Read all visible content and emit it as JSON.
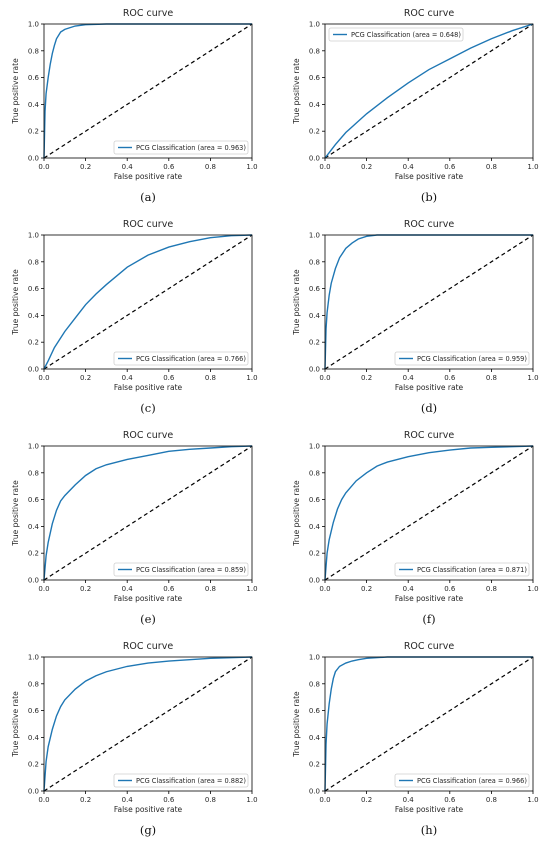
{
  "figure": {
    "panels": [
      {
        "label": "(a)"
      },
      {
        "label": "(b)"
      },
      {
        "label": "(c)"
      },
      {
        "label": "(d)"
      },
      {
        "label": "(e)"
      },
      {
        "label": "(f)"
      },
      {
        "label": "(g)"
      },
      {
        "label": "(h)"
      }
    ]
  },
  "colors": {
    "roc_line": "#1f77b4",
    "chance_line": "#000000",
    "axes": "#000000"
  },
  "chart_data": [
    {
      "type": "line",
      "title": "ROC curve",
      "xlabel": "False positive rate",
      "ylabel": "True positive rate",
      "xlim": [
        0,
        1
      ],
      "ylim": [
        0,
        1
      ],
      "xticks": [
        "0.0",
        "0.2",
        "0.4",
        "0.6",
        "0.8",
        "1.0"
      ],
      "yticks": [
        "0.0",
        "0.2",
        "0.4",
        "0.6",
        "0.8",
        "1.0"
      ],
      "grid": false,
      "legend_position": "lower right",
      "chance_line": true,
      "series": [
        {
          "name": "PCG Classification (area = 0.963)",
          "x": [
            0,
            0.005,
            0.01,
            0.02,
            0.03,
            0.04,
            0.05,
            0.06,
            0.08,
            0.1,
            0.12,
            0.15,
            0.2,
            0.3,
            0.5,
            1.0
          ],
          "y": [
            0,
            0.35,
            0.48,
            0.6,
            0.7,
            0.78,
            0.84,
            0.89,
            0.94,
            0.96,
            0.97,
            0.985,
            0.995,
            1.0,
            1.0,
            1.0
          ]
        }
      ]
    },
    {
      "type": "line",
      "title": "ROC curve",
      "xlabel": "False positive rate",
      "ylabel": "True positive rate",
      "xlim": [
        0,
        1
      ],
      "ylim": [
        0,
        1
      ],
      "xticks": [
        "0.0",
        "0.2",
        "0.4",
        "0.6",
        "0.8",
        "1.0"
      ],
      "yticks": [
        "0.0",
        "0.2",
        "0.4",
        "0.6",
        "0.8",
        "1.0"
      ],
      "grid": false,
      "legend_position": "upper left",
      "chance_line": true,
      "series": [
        {
          "name": "PCG Classification (area = 0.648)",
          "x": [
            0,
            0.02,
            0.05,
            0.1,
            0.15,
            0.2,
            0.3,
            0.4,
            0.5,
            0.6,
            0.7,
            0.8,
            0.9,
            1.0
          ],
          "y": [
            0,
            0.04,
            0.1,
            0.19,
            0.26,
            0.33,
            0.45,
            0.56,
            0.66,
            0.74,
            0.82,
            0.89,
            0.95,
            1.0
          ]
        }
      ]
    },
    {
      "type": "line",
      "title": "ROC curve",
      "xlabel": "False positive rate",
      "ylabel": "True positive rate",
      "xlim": [
        0,
        1
      ],
      "ylim": [
        0,
        1
      ],
      "xticks": [
        "0.0",
        "0.2",
        "0.4",
        "0.6",
        "0.8",
        "1.0"
      ],
      "yticks": [
        "0.0",
        "0.2",
        "0.4",
        "0.6",
        "0.8",
        "1.0"
      ],
      "grid": false,
      "legend_position": "lower right",
      "chance_line": true,
      "series": [
        {
          "name": "PCG Classification (area = 0.766)",
          "x": [
            0,
            0.02,
            0.05,
            0.1,
            0.15,
            0.2,
            0.25,
            0.3,
            0.4,
            0.5,
            0.6,
            0.7,
            0.8,
            0.9,
            1.0
          ],
          "y": [
            0,
            0.06,
            0.16,
            0.28,
            0.38,
            0.48,
            0.56,
            0.63,
            0.76,
            0.85,
            0.91,
            0.95,
            0.98,
            0.995,
            1.0
          ]
        }
      ]
    },
    {
      "type": "line",
      "title": "ROC curve",
      "xlabel": "False positive rate",
      "ylabel": "True positive rate",
      "xlim": [
        0,
        1
      ],
      "ylim": [
        0,
        1
      ],
      "xticks": [
        "0.0",
        "0.2",
        "0.4",
        "0.6",
        "0.8",
        "1.0"
      ],
      "yticks": [
        "0.0",
        "0.2",
        "0.4",
        "0.6",
        "0.8",
        "1.0"
      ],
      "grid": false,
      "legend_position": "lower right",
      "chance_line": true,
      "series": [
        {
          "name": "PCG Classification (area = 0.959)",
          "x": [
            0,
            0.005,
            0.01,
            0.02,
            0.03,
            0.05,
            0.07,
            0.1,
            0.13,
            0.16,
            0.2,
            0.25,
            0.3,
            0.5,
            1.0
          ],
          "y": [
            0,
            0.3,
            0.42,
            0.55,
            0.64,
            0.75,
            0.83,
            0.9,
            0.94,
            0.97,
            0.99,
            1.0,
            1.0,
            1.0,
            1.0
          ]
        }
      ]
    },
    {
      "type": "line",
      "title": "ROC curve",
      "xlabel": "False positive rate",
      "ylabel": "True positive rate",
      "xlim": [
        0,
        1
      ],
      "ylim": [
        0,
        1
      ],
      "xticks": [
        "0.0",
        "0.2",
        "0.4",
        "0.6",
        "0.8",
        "1.0"
      ],
      "yticks": [
        "0.0",
        "0.2",
        "0.4",
        "0.6",
        "0.8",
        "1.0"
      ],
      "grid": false,
      "legend_position": "lower right",
      "chance_line": true,
      "series": [
        {
          "name": "PCG Classification (area = 0.859)",
          "x": [
            0,
            0.01,
            0.02,
            0.04,
            0.06,
            0.08,
            0.1,
            0.15,
            0.2,
            0.25,
            0.3,
            0.4,
            0.5,
            0.6,
            0.7,
            0.8,
            0.9,
            1.0
          ],
          "y": [
            0,
            0.18,
            0.28,
            0.42,
            0.52,
            0.59,
            0.63,
            0.71,
            0.78,
            0.83,
            0.86,
            0.9,
            0.93,
            0.96,
            0.975,
            0.985,
            0.995,
            1.0
          ]
        }
      ]
    },
    {
      "type": "line",
      "title": "ROC curve",
      "xlabel": "False positive rate",
      "ylabel": "True positive rate",
      "xlim": [
        0,
        1
      ],
      "ylim": [
        0,
        1
      ],
      "xticks": [
        "0.0",
        "0.2",
        "0.4",
        "0.6",
        "0.8",
        "1.0"
      ],
      "yticks": [
        "0.0",
        "0.2",
        "0.4",
        "0.6",
        "0.8",
        "1.0"
      ],
      "grid": false,
      "legend_position": "lower right",
      "chance_line": true,
      "series": [
        {
          "name": "PCG Classification (area = 0.871)",
          "x": [
            0,
            0.01,
            0.02,
            0.04,
            0.06,
            0.08,
            0.1,
            0.15,
            0.2,
            0.25,
            0.3,
            0.4,
            0.5,
            0.6,
            0.7,
            0.8,
            0.9,
            1.0
          ],
          "y": [
            0,
            0.2,
            0.3,
            0.43,
            0.53,
            0.6,
            0.65,
            0.74,
            0.8,
            0.85,
            0.88,
            0.92,
            0.95,
            0.97,
            0.985,
            0.99,
            0.995,
            1.0
          ]
        }
      ]
    },
    {
      "type": "line",
      "title": "ROC curve",
      "xlabel": "False positive rate",
      "ylabel": "True positive rate",
      "xlim": [
        0,
        1
      ],
      "ylim": [
        0,
        1
      ],
      "xticks": [
        "0.0",
        "0.2",
        "0.4",
        "0.6",
        "0.8",
        "1.0"
      ],
      "yticks": [
        "0.0",
        "0.2",
        "0.4",
        "0.6",
        "0.8",
        "1.0"
      ],
      "grid": false,
      "legend_position": "lower right",
      "chance_line": true,
      "series": [
        {
          "name": "PCG Classification (area = 0.882)",
          "x": [
            0,
            0.01,
            0.02,
            0.04,
            0.06,
            0.08,
            0.1,
            0.15,
            0.2,
            0.25,
            0.3,
            0.4,
            0.5,
            0.6,
            0.7,
            0.8,
            0.9,
            1.0
          ],
          "y": [
            0,
            0.22,
            0.33,
            0.46,
            0.56,
            0.63,
            0.68,
            0.76,
            0.82,
            0.86,
            0.89,
            0.93,
            0.955,
            0.97,
            0.98,
            0.99,
            0.995,
            1.0
          ]
        }
      ]
    },
    {
      "type": "line",
      "title": "ROC curve",
      "xlabel": "False positive rate",
      "ylabel": "True positive rate",
      "xlim": [
        0,
        1
      ],
      "ylim": [
        0,
        1
      ],
      "xticks": [
        "0.0",
        "0.2",
        "0.4",
        "0.6",
        "0.8",
        "1.0"
      ],
      "yticks": [
        "0.0",
        "0.2",
        "0.4",
        "0.6",
        "0.8",
        "1.0"
      ],
      "grid": false,
      "legend_position": "lower right",
      "chance_line": true,
      "series": [
        {
          "name": "PCG Classification (area = 0.966)",
          "x": [
            0,
            0.005,
            0.01,
            0.02,
            0.03,
            0.04,
            0.05,
            0.07,
            0.1,
            0.13,
            0.16,
            0.2,
            0.3,
            0.5,
            1.0
          ],
          "y": [
            0,
            0.35,
            0.5,
            0.65,
            0.76,
            0.84,
            0.89,
            0.93,
            0.955,
            0.97,
            0.98,
            0.99,
            1.0,
            1.0,
            1.0
          ]
        }
      ]
    }
  ]
}
